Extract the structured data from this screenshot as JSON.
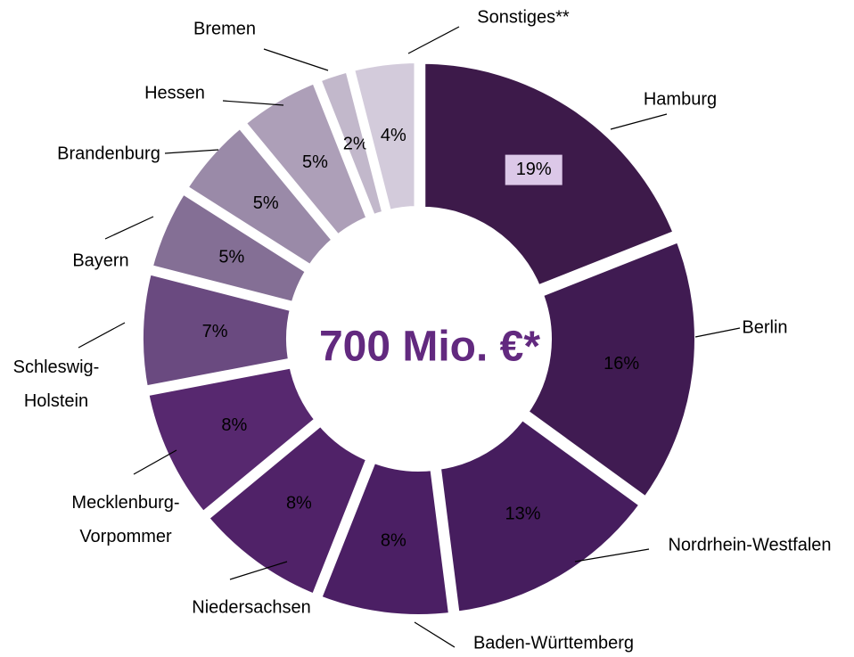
{
  "chart_data": {
    "type": "donut",
    "center_text": "700 Mio. €*",
    "categories": [
      "Hamburg",
      "Berlin",
      "Nordrhein-Westfalen",
      "Baden-Württemberg",
      "Niedersachsen",
      "Mecklenburg-\nVorpommer",
      "Schleswig-\nHolstein",
      "Bayern",
      "Brandenburg",
      "Hessen",
      "Bremen",
      "Sonstiges**"
    ],
    "values": [
      19,
      16,
      13,
      8,
      8,
      8,
      7,
      5,
      5,
      5,
      2,
      4
    ],
    "value_labels": [
      "19%",
      "16%",
      "13%",
      "8%",
      "8%",
      "8%",
      "7%",
      "5%",
      "5%",
      "5%",
      "2%",
      "4%"
    ],
    "colors": [
      "#3d1a4a",
      "#401b52",
      "#461d5e",
      "#4b1f64",
      "#502268",
      "#57286f",
      "#6a4a80",
      "#846f95",
      "#9a8aa8",
      "#ad9fb8",
      "#c2b8cb",
      "#d3cbdb"
    ]
  }
}
